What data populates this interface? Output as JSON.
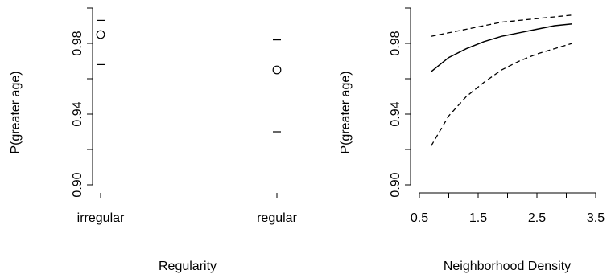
{
  "chart_data": [
    {
      "type": "scatter",
      "title": "",
      "xlabel": "Regularity",
      "ylabel": "P(greater age)",
      "categories": [
        "irregular",
        "regular"
      ],
      "values": [
        0.985,
        0.965
      ],
      "ci_upper": [
        0.993,
        0.982
      ],
      "ci_lower": [
        0.968,
        0.93
      ],
      "ylim": [
        0.9,
        1.0
      ],
      "y_ticks": [
        0.9,
        0.94,
        0.98
      ],
      "y_tick_labels": [
        "0.90",
        "0.94",
        "0.98"
      ],
      "grid": false
    },
    {
      "type": "line",
      "title": "",
      "xlabel": "Neighborhood Density",
      "ylabel": "P(greater age)",
      "x": [
        0.7,
        1.0,
        1.3,
        1.6,
        1.9,
        2.2,
        2.5,
        2.8,
        3.1
      ],
      "series": [
        {
          "values": [
            0.964,
            0.972,
            0.977,
            0.981,
            0.984,
            0.986,
            0.988,
            0.99,
            0.991
          ],
          "style": "solid"
        },
        {
          "values": [
            0.984,
            0.986,
            0.988,
            0.99,
            0.992,
            0.993,
            0.994,
            0.995,
            0.996
          ],
          "style": "dashed"
        },
        {
          "values": [
            0.922,
            0.939,
            0.95,
            0.958,
            0.965,
            0.97,
            0.974,
            0.977,
            0.98
          ],
          "style": "dashed"
        }
      ],
      "xlim": [
        0.5,
        3.5
      ],
      "ylim": [
        0.9,
        1.0
      ],
      "x_ticks": [
        0.5,
        1.0,
        1.5,
        2.0,
        2.5,
        3.0,
        3.5
      ],
      "x_tick_labels": [
        "0.5",
        "",
        "1.5",
        "",
        "2.5",
        "",
        "3.5"
      ],
      "y_ticks": [
        0.9,
        0.94,
        0.98
      ],
      "y_tick_labels": [
        "0.90",
        "0.94",
        "0.98"
      ],
      "grid": false
    }
  ]
}
